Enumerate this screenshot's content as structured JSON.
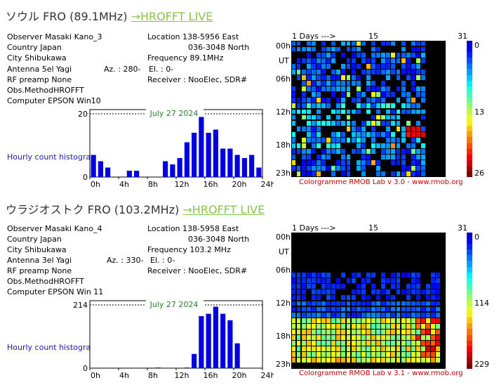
{
  "stations": [
    {
      "title": "ソウル FRO (89.1MHz)",
      "link_label": "→HROFFT LIVE",
      "info": {
        "observer": "Observer  Masaki Kano_3",
        "location": "Location   138-5956 East",
        "location2": "036-3048 North",
        "country": "Country   Japan",
        "city": "City        Shibukawa",
        "frequency": "Frequency 89.1MHz",
        "antenna": "Antenna    5el Yagi",
        "az": "Az. : 280-",
        "el": "El. : 0-",
        "rf_preamp": "RF preamp None",
        "receiver": "Receiver : NooElec, SDR#",
        "obs_method": "Obs.MethodHROFFT",
        "computer": "Computer EPSON Win10"
      },
      "histogram": {
        "label": "Hourly count histogram",
        "date": "July 27 2024",
        "ymax_label": "20",
        "y0_label": "0",
        "x_labels": [
          "0h",
          "4h",
          "8h",
          "12h",
          "16h",
          "20h",
          "24h"
        ]
      },
      "chart_data": {
        "type": "bar",
        "title": "July 27 2024",
        "x": [
          "0",
          "1",
          "2",
          "3",
          "4",
          "5",
          "6",
          "7",
          "8",
          "9",
          "10",
          "11",
          "12",
          "13",
          "14",
          "15",
          "16",
          "17",
          "18",
          "19",
          "20",
          "21",
          "22",
          "23"
        ],
        "values": [
          7,
          5,
          3,
          0,
          0,
          2,
          2,
          0,
          0,
          0,
          5,
          4,
          6,
          11,
          14,
          19,
          14,
          15,
          9,
          9,
          7,
          6,
          7,
          3
        ],
        "ylim": [
          0,
          20
        ]
      },
      "colorgramme": {
        "day_header": "1   Days --->",
        "day_15": "15",
        "day_31": "31",
        "hour_labels": [
          "00h",
          "UT",
          "06h",
          "12h",
          "18h",
          "23h"
        ],
        "scale_min": "0",
        "scale_mid": "13",
        "scale_max": "26",
        "credit": "Colorgramme RMOB Lab v 3.0 - www.rmob.org"
      }
    },
    {
      "title": "ウラジオストク FRO (103.2MHz)",
      "link_label": "→HROFFT LIVE",
      "info": {
        "observer": "Observer  Masaki Kano_4",
        "location": "Location   138-5958 East",
        "location2": "036-3048 North",
        "country": "Country   Japan",
        "city": "City        Shibukawa",
        "frequency": "Frequency 103.2 MHz",
        "antenna": "Antenna     3el Yagi",
        "az": "Az. : 330-",
        "el": "El. : 0-",
        "rf_preamp": "RF preamp None",
        "receiver": "Receiver : NooElec, SDR#",
        "obs_method": "Obs.MethodHROFFT",
        "computer": "Computer EPSON Win 11"
      },
      "histogram": {
        "label": "Hourly count histogram",
        "date": "July 27 2024",
        "ymax_label": "214",
        "y0_label": "0",
        "x_labels": [
          "0h",
          "4h",
          "8h",
          "12h",
          "16h",
          "20h",
          "24h"
        ]
      },
      "chart_data": {
        "type": "bar",
        "title": "July 27 2024",
        "x": [
          "0",
          "1",
          "2",
          "3",
          "4",
          "5",
          "6",
          "7",
          "8",
          "9",
          "10",
          "11",
          "12",
          "13",
          "14",
          "15",
          "16",
          "17",
          "18",
          "19",
          "20",
          "21",
          "22",
          "23"
        ],
        "values": [
          0,
          0,
          0,
          0,
          0,
          0,
          0,
          0,
          0,
          2,
          1,
          0,
          1,
          2,
          48,
          176,
          184,
          208,
          184,
          162,
          84,
          0,
          0,
          0
        ],
        "ylim": [
          0,
          214
        ]
      },
      "colorgramme": {
        "day_header": "1   Days --->",
        "day_15": "15",
        "day_31": "31",
        "hour_labels": [
          "00h",
          "UT",
          "06h",
          "12h",
          "18h",
          "23h"
        ],
        "scale_min": "0",
        "scale_mid": "114",
        "scale_max": "229",
        "credit": "Colorgramme RMOB Lab v 3.1 - www.rmob.org"
      }
    }
  ]
}
